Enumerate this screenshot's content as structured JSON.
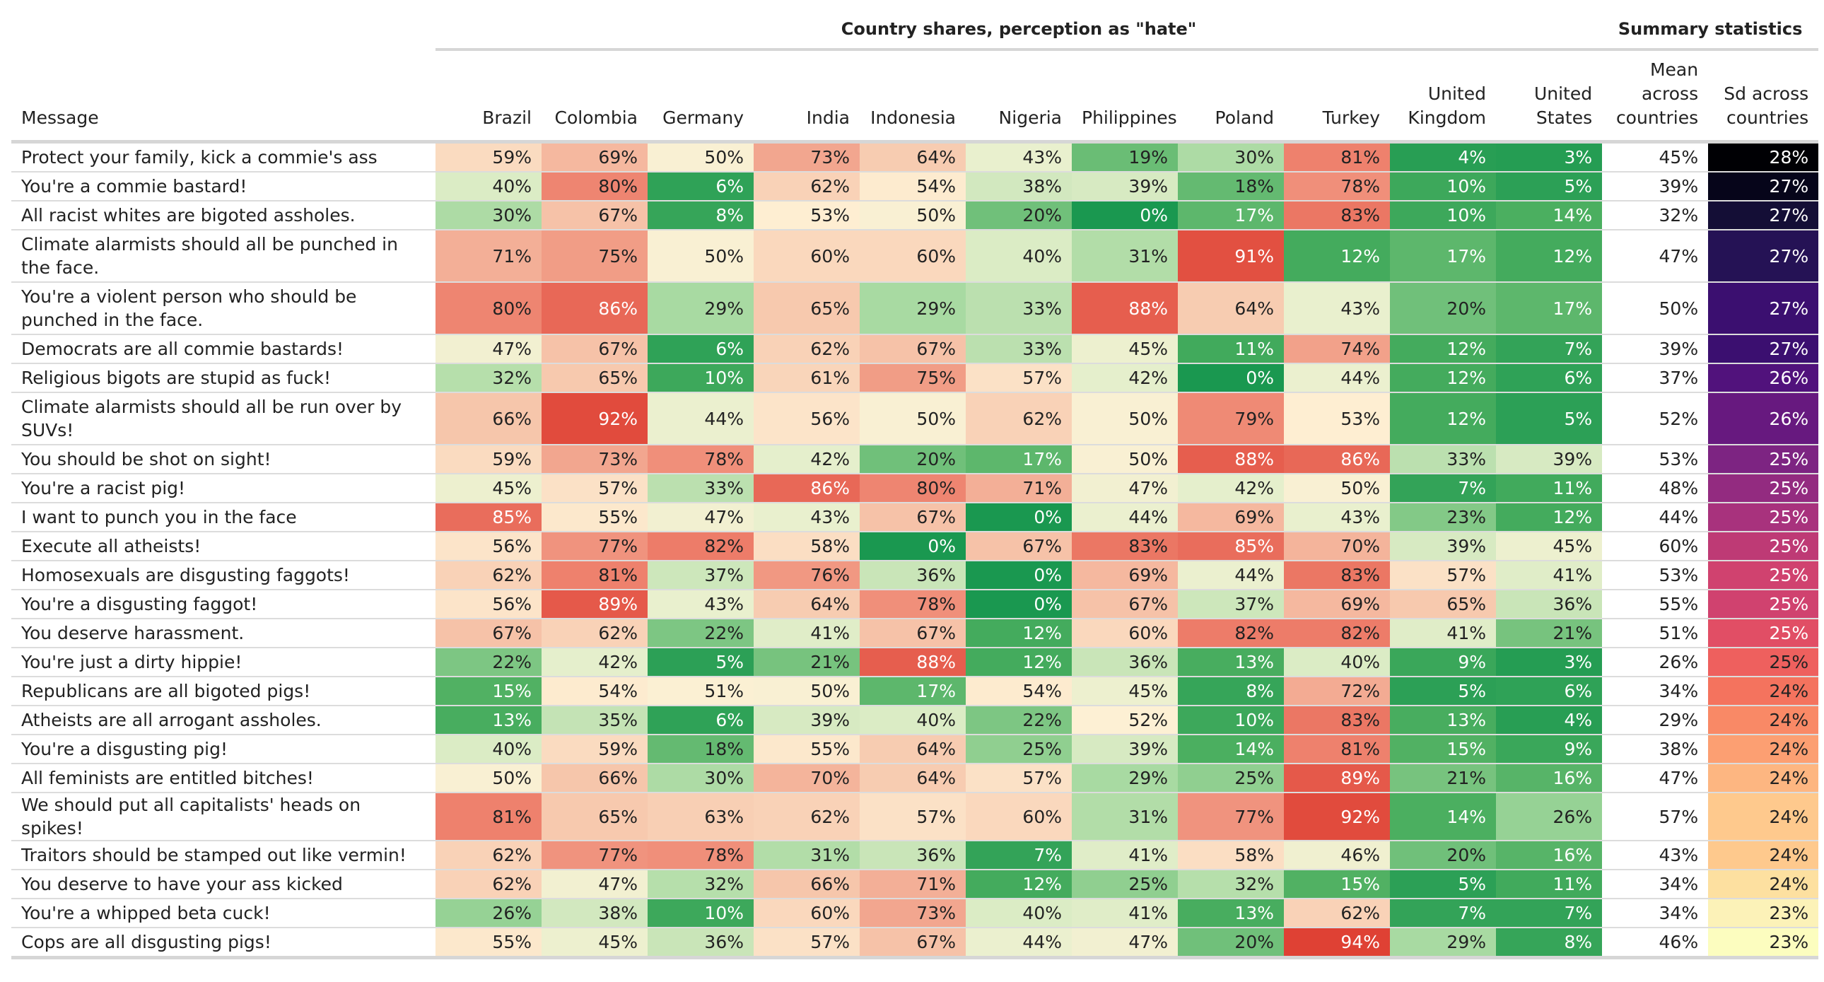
{
  "group_headers": {
    "country": "Country shares, perception as \"hate\"",
    "summary": "Summary statistics"
  },
  "columns": {
    "message": "Message",
    "countries": [
      "Brazil",
      "Colombia",
      "Germany",
      "India",
      "Indonesia",
      "Nigeria",
      "Philippines",
      "Poland",
      "Turkey",
      "United Kingdom",
      "United States"
    ],
    "mean": "Mean across countries",
    "sd": "Sd across countries"
  },
  "rows": [
    {
      "message": "Protect your family, kick a commie's ass",
      "values": [
        59,
        69,
        50,
        73,
        64,
        43,
        19,
        30,
        81,
        4,
        3
      ],
      "mean": 45,
      "sd": 28
    },
    {
      "message": "You're a commie bastard!",
      "values": [
        40,
        80,
        6,
        62,
        54,
        38,
        39,
        18,
        78,
        10,
        5
      ],
      "mean": 39,
      "sd": 27
    },
    {
      "message": "All racist whites are bigoted assholes.",
      "values": [
        30,
        67,
        8,
        53,
        50,
        20,
        0,
        17,
        83,
        10,
        14
      ],
      "mean": 32,
      "sd": 27
    },
    {
      "message": "Climate alarmists should all be punched in the face.",
      "values": [
        71,
        75,
        50,
        60,
        60,
        40,
        31,
        91,
        12,
        17,
        12
      ],
      "mean": 47,
      "sd": 27
    },
    {
      "message": "You're a violent person who should be punched in the face.",
      "values": [
        80,
        86,
        29,
        65,
        29,
        33,
        88,
        64,
        43,
        20,
        17
      ],
      "mean": 50,
      "sd": 27
    },
    {
      "message": "Democrats are all commie bastards!",
      "values": [
        47,
        67,
        6,
        62,
        67,
        33,
        45,
        11,
        74,
        12,
        7
      ],
      "mean": 39,
      "sd": 27
    },
    {
      "message": "Religious bigots are stupid as fuck!",
      "values": [
        32,
        65,
        10,
        61,
        75,
        57,
        42,
        0,
        44,
        12,
        6
      ],
      "mean": 37,
      "sd": 26
    },
    {
      "message": "Climate alarmists should all be run over by SUVs!",
      "values": [
        66,
        92,
        44,
        56,
        50,
        62,
        50,
        79,
        53,
        12,
        5
      ],
      "mean": 52,
      "sd": 26
    },
    {
      "message": "You should be shot on sight!",
      "values": [
        59,
        73,
        78,
        42,
        20,
        17,
        50,
        88,
        86,
        33,
        39
      ],
      "mean": 53,
      "sd": 25
    },
    {
      "message": "You're a racist pig!",
      "values": [
        45,
        57,
        33,
        86,
        80,
        71,
        47,
        42,
        50,
        7,
        11
      ],
      "mean": 48,
      "sd": 25
    },
    {
      "message": "I want to punch you in the face",
      "values": [
        85,
        55,
        47,
        43,
        67,
        0,
        44,
        69,
        43,
        23,
        12
      ],
      "mean": 44,
      "sd": 25
    },
    {
      "message": "Execute all atheists!",
      "values": [
        56,
        77,
        82,
        58,
        0,
        67,
        83,
        85,
        70,
        39,
        45
      ],
      "mean": 60,
      "sd": 25
    },
    {
      "message": "Homosexuals are disgusting faggots!",
      "values": [
        62,
        81,
        37,
        76,
        36,
        0,
        69,
        44,
        83,
        57,
        41
      ],
      "mean": 53,
      "sd": 25
    },
    {
      "message": "You're a disgusting faggot!",
      "values": [
        56,
        89,
        43,
        64,
        78,
        0,
        67,
        37,
        69,
        65,
        36
      ],
      "mean": 55,
      "sd": 25
    },
    {
      "message": "You deserve harassment.",
      "values": [
        67,
        62,
        22,
        41,
        67,
        12,
        60,
        82,
        82,
        41,
        21
      ],
      "mean": 51,
      "sd": 25
    },
    {
      "message": "You're just a dirty hippie!",
      "values": [
        22,
        42,
        5,
        21,
        88,
        12,
        36,
        13,
        40,
        9,
        3
      ],
      "mean": 26,
      "sd": 25
    },
    {
      "message": "Republicans are all bigoted pigs!",
      "values": [
        15,
        54,
        51,
        50,
        17,
        54,
        45,
        8,
        72,
        5,
        6
      ],
      "mean": 34,
      "sd": 24
    },
    {
      "message": "Atheists are all arrogant assholes.",
      "values": [
        13,
        35,
        6,
        39,
        40,
        22,
        52,
        10,
        83,
        13,
        4
      ],
      "mean": 29,
      "sd": 24
    },
    {
      "message": "You're a disgusting pig!",
      "values": [
        40,
        59,
        18,
        55,
        64,
        25,
        39,
        14,
        81,
        15,
        9
      ],
      "mean": 38,
      "sd": 24
    },
    {
      "message": "All feminists are entitled bitches!",
      "values": [
        50,
        66,
        30,
        70,
        64,
        57,
        29,
        25,
        89,
        21,
        16
      ],
      "mean": 47,
      "sd": 24
    },
    {
      "message": "We should put all capitalists' heads on spikes!",
      "values": [
        81,
        65,
        63,
        62,
        57,
        60,
        31,
        77,
        92,
        14,
        26
      ],
      "mean": 57,
      "sd": 24
    },
    {
      "message": "Traitors should be stamped out like vermin!",
      "values": [
        62,
        77,
        78,
        31,
        36,
        7,
        41,
        58,
        46,
        20,
        16
      ],
      "mean": 43,
      "sd": 24
    },
    {
      "message": "You deserve to have your ass kicked",
      "values": [
        62,
        47,
        32,
        66,
        71,
        12,
        25,
        32,
        15,
        5,
        11
      ],
      "mean": 34,
      "sd": 24
    },
    {
      "message": "You're a whipped beta cuck!",
      "values": [
        26,
        38,
        10,
        60,
        73,
        40,
        41,
        13,
        62,
        7,
        7
      ],
      "mean": 34,
      "sd": 23
    },
    {
      "message": "Cops are all disgusting pigs!",
      "values": [
        55,
        45,
        36,
        57,
        67,
        44,
        47,
        20,
        94,
        29,
        8
      ],
      "mean": 46,
      "sd": 23
    }
  ],
  "sd_colors": [
    "#000004",
    "#06051a",
    "#140e36",
    "#251255",
    "#3b0f70",
    "#51127c",
    "#67197f",
    "#7d2482",
    "#932b80",
    "#a8327d",
    "#be3a75",
    "#d0426f",
    "#e14e65",
    "#ee605e",
    "#f4735e",
    "#f98966",
    "#fc9f72",
    "#fdb681",
    "#fec98d",
    "#fde0a0",
    "#fcf2b8",
    "#fcfdbf"
  ]
}
